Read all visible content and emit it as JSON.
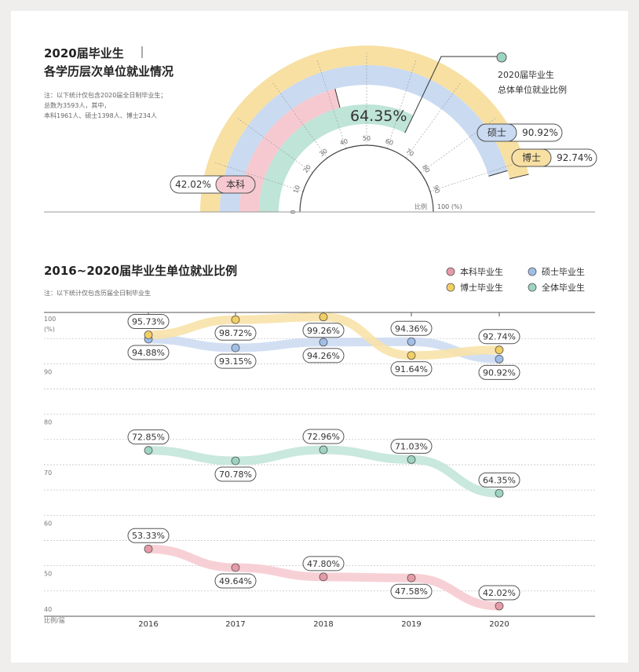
{
  "gauge": {
    "title_line1": "2020届毕业生",
    "title_line2": "各学历层次单位就业情况",
    "notes": [
      "注：以下统计仅包含2020届全日制毕业生；",
      "总数为3593人，其中，",
      "本科1961人、硕士1398人、博士234人"
    ],
    "overall_label_line1": "2020届毕业生",
    "overall_label_line2": "总体单位就业比例",
    "overall_value": "64.35%",
    "axis_unit": "比例",
    "ticks": [
      "0",
      "10",
      "20",
      "30",
      "40",
      "50",
      "60",
      "70",
      "80",
      "90",
      "100 (%)"
    ],
    "bands": [
      {
        "name": "博士",
        "value": 92.74,
        "text": "92.74%",
        "color": "#f8e0a3"
      },
      {
        "name": "硕士",
        "value": 90.92,
        "text": "90.92%",
        "color": "#c9daf1"
      },
      {
        "name": "本科",
        "value": 42.02,
        "text": "42.02%",
        "color": "#f6c9d0"
      },
      {
        "name": "总体",
        "value": 64.35,
        "text": "64.35%",
        "color": "#bfe4d8"
      }
    ]
  },
  "chart_data": {
    "type": "line",
    "title": "2016~2020届毕业生单位就业比例",
    "note": "注：以下统计仅包含历届全日制毕业生",
    "xlabel": "比例/届",
    "ylabel": "(%)",
    "ylim": [
      40,
      100
    ],
    "yticks": [
      "100",
      "90",
      "80",
      "70",
      "60",
      "50",
      "40"
    ],
    "categories": [
      "2016",
      "2017",
      "2018",
      "2019",
      "2020"
    ],
    "legend_position": "top-right",
    "series": [
      {
        "name": "本科毕业生",
        "color": "#e79aa6",
        "band": "#f6cbd2",
        "values": [
          53.33,
          49.64,
          47.8,
          47.58,
          42.02
        ],
        "labels": [
          "53.33%",
          "49.64%",
          "47.80%",
          "47.58%",
          "42.02%"
        ]
      },
      {
        "name": "硕士毕业生",
        "color": "#a0bfe8",
        "band": "#cddcf2",
        "values": [
          94.88,
          93.15,
          94.26,
          94.36,
          90.92
        ],
        "labels": [
          "94.88%",
          "93.15%",
          "94.26%",
          "94.36%",
          "90.92%"
        ]
      },
      {
        "name": "博士毕业生",
        "color": "#f3cf63",
        "band": "#f8e2a8",
        "values": [
          95.73,
          98.72,
          99.26,
          91.64,
          92.74
        ],
        "labels": [
          "95.73%",
          "98.72%",
          "99.26%",
          "91.64%",
          "92.74%"
        ]
      },
      {
        "name": "全体毕业生",
        "color": "#9dd4c1",
        "band": "#c3e6da",
        "values": [
          72.85,
          70.78,
          72.96,
          71.03,
          64.35
        ],
        "labels": [
          "72.85%",
          "70.78%",
          "72.96%",
          "71.03%",
          "64.35%"
        ]
      }
    ]
  }
}
